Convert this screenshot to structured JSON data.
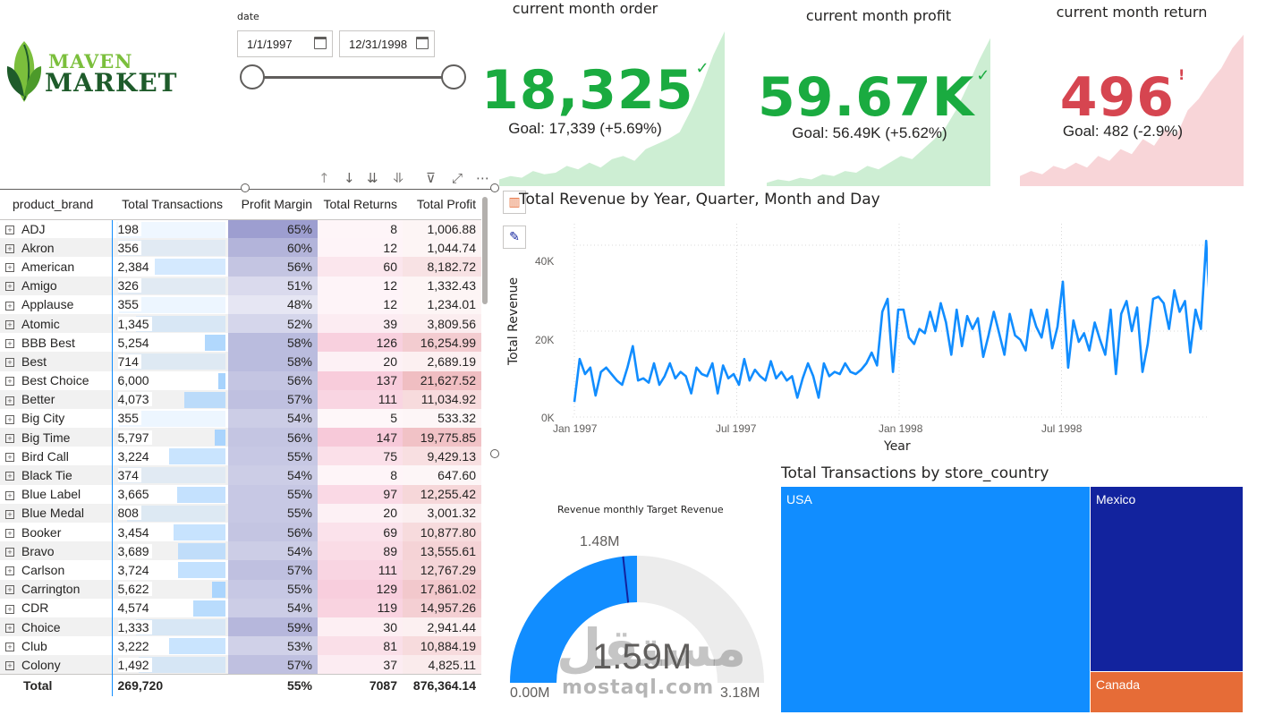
{
  "logo": {
    "line1": "MAVEN",
    "line2": "MARKET"
  },
  "slicer": {
    "title": "date",
    "start": "1/1/1997",
    "end": "12/31/1998"
  },
  "kpis": [
    {
      "title": "current month order",
      "value": "18,325",
      "mark": "✓",
      "goal": "Goal: 17,339 (+5.69%)",
      "color": "#1aab40",
      "fill": "#cdeed3"
    },
    {
      "title": "current month profit",
      "value": "59.67K",
      "mark": "✓",
      "goal": "Goal: 56.49K (+5.62%)",
      "color": "#1aab40",
      "fill": "#cdeed3"
    },
    {
      "title": "current month return",
      "value": "496",
      "mark": "!",
      "goal": "Goal: 482 (-2.9%)",
      "color": "#d64550",
      "fill": "#f8d5d8"
    }
  ],
  "table": {
    "headers": [
      "product_brand",
      "Total Transactions",
      "Profit Margin",
      "Total Returns",
      "Total Profit"
    ],
    "rows": [
      [
        "ADJ",
        "198",
        "65%",
        "8",
        "1,006.88"
      ],
      [
        "Akron",
        "356",
        "60%",
        "12",
        "1,044.74"
      ],
      [
        "American",
        "2,384",
        "56%",
        "60",
        "8,182.72"
      ],
      [
        "Amigo",
        "326",
        "51%",
        "12",
        "1,332.43"
      ],
      [
        "Applause",
        "355",
        "48%",
        "12",
        "1,234.01"
      ],
      [
        "Atomic",
        "1,345",
        "52%",
        "39",
        "3,809.56"
      ],
      [
        "BBB Best",
        "5,254",
        "58%",
        "126",
        "16,254.99"
      ],
      [
        "Best",
        "714",
        "58%",
        "20",
        "2,689.19"
      ],
      [
        "Best Choice",
        "6,000",
        "56%",
        "137",
        "21,627.52"
      ],
      [
        "Better",
        "4,073",
        "57%",
        "111",
        "11,034.92"
      ],
      [
        "Big City",
        "355",
        "54%",
        "5",
        "533.32"
      ],
      [
        "Big Time",
        "5,797",
        "56%",
        "147",
        "19,775.85"
      ],
      [
        "Bird Call",
        "3,224",
        "55%",
        "75",
        "9,429.13"
      ],
      [
        "Black Tie",
        "374",
        "54%",
        "8",
        "647.60"
      ],
      [
        "Blue Label",
        "3,665",
        "55%",
        "97",
        "12,255.42"
      ],
      [
        "Blue Medal",
        "808",
        "55%",
        "20",
        "3,001.32"
      ],
      [
        "Booker",
        "3,454",
        "56%",
        "69",
        "10,877.80"
      ],
      [
        "Bravo",
        "3,689",
        "54%",
        "89",
        "13,555.61"
      ],
      [
        "Carlson",
        "3,724",
        "57%",
        "111",
        "12,767.29"
      ],
      [
        "Carrington",
        "5,622",
        "55%",
        "129",
        "17,861.02"
      ],
      [
        "CDR",
        "4,574",
        "54%",
        "119",
        "14,957.26"
      ],
      [
        "Choice",
        "1,333",
        "59%",
        "30",
        "2,941.44"
      ],
      [
        "Club",
        "3,222",
        "53%",
        "81",
        "10,884.19"
      ],
      [
        "Colony",
        "1,492",
        "57%",
        "37",
        "4,825.11"
      ]
    ],
    "total": [
      "Total",
      "269,720",
      "55%",
      "7087",
      "876,364.14"
    ]
  },
  "line_chart": {
    "title": "Total Revenue by Year, Quarter, Month and Day",
    "ylabel": "Total Revenue",
    "xlabel": "Year",
    "yticks": [
      "0K",
      "20K",
      "40K"
    ],
    "xticks": [
      "Jan 1997",
      "Jul 1997",
      "Jan 1998",
      "Jul 1998"
    ]
  },
  "gauge": {
    "title": "Revenue monthly Target Revenue",
    "value": "1.59M",
    "target": "1.48M",
    "min": "0.00M",
    "max": "3.18M",
    "value_frac": 0.5,
    "target_frac": 0.465,
    "color": "#118dff"
  },
  "treemap": {
    "title": "Total Transactions by store_country",
    "cells": [
      {
        "label": "USA",
        "color": "#118dff"
      },
      {
        "label": "Mexico",
        "color": "#12239e"
      },
      {
        "label": "Canada",
        "color": "#e66c37"
      }
    ]
  },
  "watermark": {
    "line1": "مستقل",
    "line2": "mostaql.com"
  },
  "chart_data": {
    "type": "line",
    "title": "Total Revenue by Year, Quarter, Month and Day",
    "xlabel": "Year",
    "ylabel": "Total Revenue",
    "ylim": [
      0,
      45000
    ],
    "x_range": [
      "1997-01-01",
      "1998-12-31"
    ],
    "x_ticks": [
      "Jan 1997",
      "Jul 1997",
      "Jan 1998",
      "Jul 1998"
    ],
    "series": [
      {
        "values": [
          3500,
          13500,
          10000,
          11500,
          5000,
          10500,
          11500,
          10000,
          8500,
          7500,
          11500,
          16500,
          8500,
          9000,
          8000,
          12500,
          7500,
          9500,
          12500,
          9000,
          10500,
          9500,
          5500,
          11500,
          10000,
          9500,
          12500,
          5500,
          12000,
          9000,
          10000,
          7500,
          13500,
          8500,
          11000,
          9500,
          8500,
          13000,
          9000,
          10500,
          8500,
          9500,
          4500,
          9000,
          12500,
          9500,
          4500,
          12500,
          9500,
          10500,
          10000,
          12500,
          10500,
          10000,
          11000,
          12500,
          15000,
          12000,
          24500,
          27500,
          10500,
          25000,
          25000,
          18500,
          17000,
          20500,
          19500,
          24500,
          20000,
          26500,
          22000,
          14500,
          25000,
          16500,
          23500,
          20500,
          23000,
          14000,
          19000,
          24500,
          19500,
          14500,
          24000,
          19000,
          18000,
          15500,
          25000,
          21000,
          18500,
          25000,
          16000,
          21000,
          31500,
          11500,
          22500,
          17500,
          19500,
          15500,
          22000,
          18000,
          14500,
          25000,
          10000,
          24000,
          27000,
          20000,
          25500,
          10500,
          17000,
          27500,
          28000,
          26500,
          20500,
          29500,
          24500,
          27000,
          15000,
          25000,
          20500,
          41000,
          20000,
          23000,
          9500
        ]
      }
    ]
  }
}
